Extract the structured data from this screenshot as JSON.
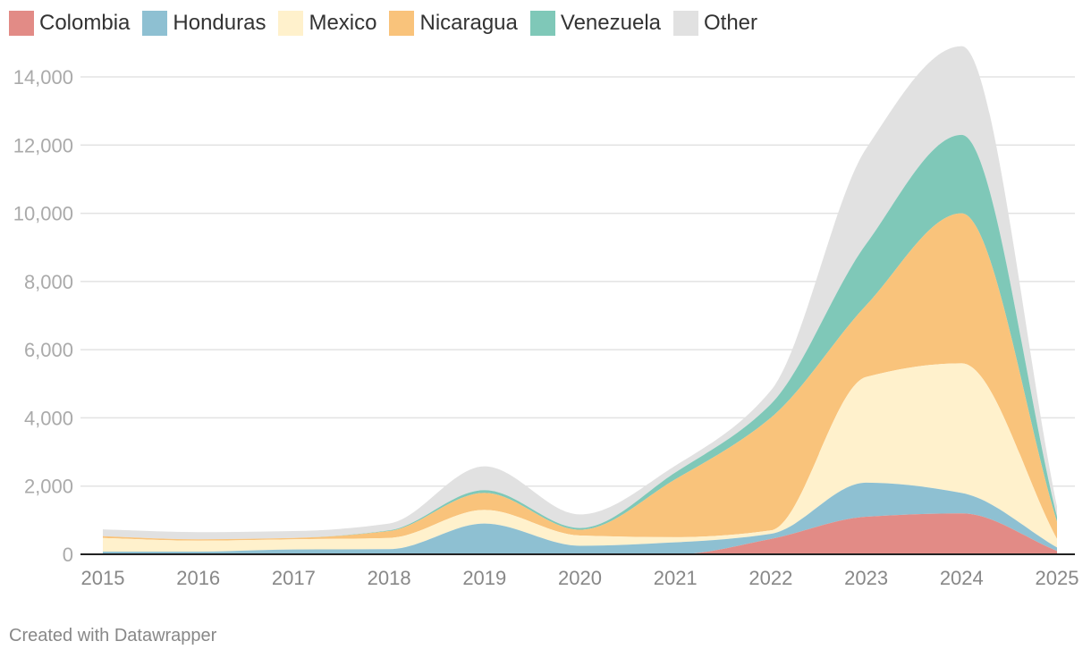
{
  "chart_data": {
    "type": "area",
    "stacked": true,
    "smooth": true,
    "x": [
      2015,
      2016,
      2017,
      2018,
      2019,
      2020,
      2021,
      2022,
      2023,
      2024,
      2025
    ],
    "series": [
      {
        "name": "Colombia",
        "color": "#e28b86",
        "values": [
          0,
          0,
          0,
          0,
          0,
          0,
          0,
          450,
          1100,
          1200,
          100
        ]
      },
      {
        "name": "Honduras",
        "color": "#8ec0d2",
        "values": [
          80,
          80,
          140,
          150,
          900,
          250,
          350,
          150,
          1000,
          600,
          100
        ]
      },
      {
        "name": "Mexico",
        "color": "#fff1cc",
        "values": [
          400,
          320,
          300,
          330,
          400,
          300,
          150,
          100,
          3100,
          3800,
          250
        ]
      },
      {
        "name": "Nicaragua",
        "color": "#f9c37b",
        "values": [
          50,
          40,
          40,
          200,
          500,
          170,
          1700,
          3300,
          2100,
          4400,
          500
        ]
      },
      {
        "name": "Venezuela",
        "color": "#7fc8b8",
        "values": [
          0,
          0,
          0,
          20,
          80,
          50,
          200,
          400,
          1800,
          2300,
          150
        ]
      },
      {
        "name": "Other",
        "color": "#e1e1e1",
        "values": [
          200,
          210,
          200,
          200,
          700,
          400,
          200,
          400,
          2800,
          2600,
          300
        ]
      }
    ],
    "ylim": [
      0,
      14000
    ],
    "yticks": [
      0,
      2000,
      4000,
      6000,
      8000,
      10000,
      12000,
      14000
    ],
    "ytick_labels": [
      "0",
      "2,000",
      "4,000",
      "6,000",
      "8,000",
      "10,000",
      "12,000",
      "14,000"
    ],
    "xtick_labels": [
      "2015",
      "2016",
      "2017",
      "2018",
      "2019",
      "2020",
      "2021",
      "2022",
      "2023",
      "2024",
      "2025"
    ],
    "grid": true,
    "legend_position": "top-left",
    "title": "",
    "xlabel": "",
    "ylabel": ""
  },
  "credit": "Created with Datawrapper"
}
